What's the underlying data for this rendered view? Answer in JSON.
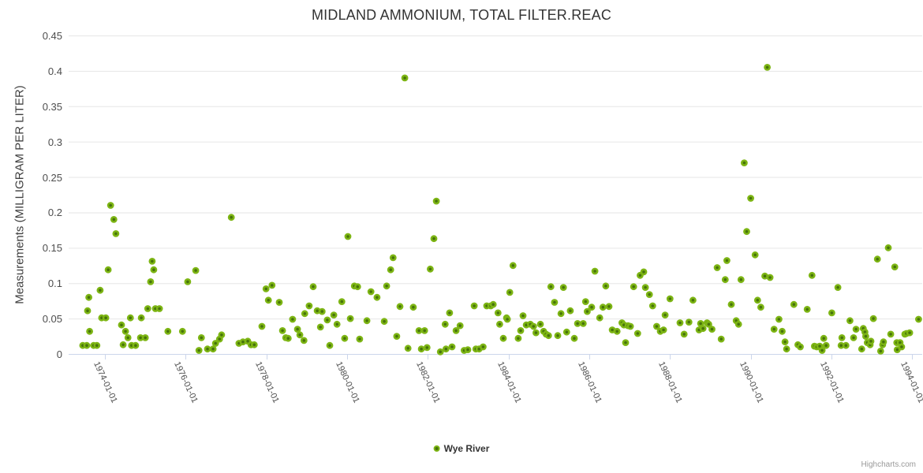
{
  "credit": "Highcharts.com",
  "colors": {
    "marker_ring": "#7db514",
    "marker_core": "#46730a",
    "grid": "#e6e6e6",
    "axis_line": "#ccd6eb",
    "title_text": "#333333",
    "label_text": "#4d4d4d",
    "credit_text": "#999999"
  },
  "chart_data": {
    "type": "scatter",
    "title": "MIDLAND AMMONIUM, TOTAL FILTER.REAC",
    "xlabel": "",
    "ylabel": "Measurements (MILLIGRAM PER LITER)",
    "series_name": "Wye River",
    "legend_position": "bottom-center",
    "grid": true,
    "xlim": [
      1973.1,
      1994.25
    ],
    "ylim": [
      0,
      0.45
    ],
    "y_ticks": [
      {
        "value": 0,
        "label": "0"
      },
      {
        "value": 0.05,
        "label": "0.05"
      },
      {
        "value": 0.1,
        "label": "0.1"
      },
      {
        "value": 0.15,
        "label": "0.15"
      },
      {
        "value": 0.2,
        "label": "0.2"
      },
      {
        "value": 0.25,
        "label": "0.25"
      },
      {
        "value": 0.3,
        "label": "0.3"
      },
      {
        "value": 0.35,
        "label": "0.35"
      },
      {
        "value": 0.4,
        "label": "0.4"
      },
      {
        "value": 0.45,
        "label": "0.45"
      }
    ],
    "x_ticks": [
      {
        "year": 1974,
        "label": "1974-01-01"
      },
      {
        "year": 1976,
        "label": "1976-01-01"
      },
      {
        "year": 1978,
        "label": "1978-01-01"
      },
      {
        "year": 1980,
        "label": "1980-01-01"
      },
      {
        "year": 1982,
        "label": "1982-01-01"
      },
      {
        "year": 1984,
        "label": "1984-01-01"
      },
      {
        "year": 1986,
        "label": "1986-01-01"
      },
      {
        "year": 1988,
        "label": "1988-01-01"
      },
      {
        "year": 1990,
        "label": "1990-01-01"
      },
      {
        "year": 1992,
        "label": "1992-01-01"
      },
      {
        "year": 1994,
        "label": "1994-01-01"
      }
    ],
    "series": [
      {
        "name": "Wye River",
        "points": [
          [
            1973.45,
            0.012
          ],
          [
            1973.55,
            0.012
          ],
          [
            1973.57,
            0.061
          ],
          [
            1973.6,
            0.08
          ],
          [
            1973.62,
            0.032
          ],
          [
            1973.72,
            0.012
          ],
          [
            1973.8,
            0.012
          ],
          [
            1973.88,
            0.09
          ],
          [
            1973.92,
            0.051
          ],
          [
            1974.02,
            0.051
          ],
          [
            1974.08,
            0.119
          ],
          [
            1974.14,
            0.21
          ],
          [
            1974.22,
            0.19
          ],
          [
            1974.27,
            0.17
          ],
          [
            1974.41,
            0.041
          ],
          [
            1974.45,
            0.013
          ],
          [
            1974.51,
            0.032
          ],
          [
            1974.57,
            0.023
          ],
          [
            1974.63,
            0.051
          ],
          [
            1974.66,
            0.012
          ],
          [
            1974.76,
            0.012
          ],
          [
            1974.88,
            0.023
          ],
          [
            1974.9,
            0.051
          ],
          [
            1975.0,
            0.023
          ],
          [
            1975.06,
            0.064
          ],
          [
            1975.13,
            0.102
          ],
          [
            1975.17,
            0.131
          ],
          [
            1975.21,
            0.119
          ],
          [
            1975.25,
            0.064
          ],
          [
            1975.35,
            0.064
          ],
          [
            1975.56,
            0.032
          ],
          [
            1975.92,
            0.032
          ],
          [
            1976.05,
            0.102
          ],
          [
            1976.25,
            0.118
          ],
          [
            1976.33,
            0.005
          ],
          [
            1976.39,
            0.023
          ],
          [
            1976.54,
            0.007
          ],
          [
            1976.68,
            0.007
          ],
          [
            1976.74,
            0.015
          ],
          [
            1976.84,
            0.021
          ],
          [
            1976.89,
            0.027
          ],
          [
            1977.13,
            0.193
          ],
          [
            1977.32,
            0.015
          ],
          [
            1977.42,
            0.017
          ],
          [
            1977.54,
            0.018
          ],
          [
            1977.62,
            0.013
          ],
          [
            1977.7,
            0.013
          ],
          [
            1977.89,
            0.039
          ],
          [
            1977.99,
            0.092
          ],
          [
            1978.05,
            0.076
          ],
          [
            1978.14,
            0.097
          ],
          [
            1978.32,
            0.073
          ],
          [
            1978.4,
            0.033
          ],
          [
            1978.48,
            0.023
          ],
          [
            1978.54,
            0.022
          ],
          [
            1978.65,
            0.049
          ],
          [
            1978.77,
            0.035
          ],
          [
            1978.83,
            0.027
          ],
          [
            1978.93,
            0.019
          ],
          [
            1978.95,
            0.057
          ],
          [
            1979.06,
            0.068
          ],
          [
            1979.16,
            0.095
          ],
          [
            1979.26,
            0.061
          ],
          [
            1979.34,
            0.038
          ],
          [
            1979.38,
            0.06
          ],
          [
            1979.51,
            0.048
          ],
          [
            1979.57,
            0.012
          ],
          [
            1979.67,
            0.055
          ],
          [
            1979.75,
            0.042
          ],
          [
            1979.87,
            0.074
          ],
          [
            1979.94,
            0.022
          ],
          [
            1980.02,
            0.166
          ],
          [
            1980.08,
            0.05
          ],
          [
            1980.18,
            0.096
          ],
          [
            1980.26,
            0.095
          ],
          [
            1980.31,
            0.021
          ],
          [
            1980.49,
            0.047
          ],
          [
            1980.59,
            0.088
          ],
          [
            1980.74,
            0.08
          ],
          [
            1980.92,
            0.046
          ],
          [
            1980.98,
            0.096
          ],
          [
            1981.08,
            0.119
          ],
          [
            1981.14,
            0.136
          ],
          [
            1981.23,
            0.025
          ],
          [
            1981.31,
            0.067
          ],
          [
            1981.43,
            0.39
          ],
          [
            1981.51,
            0.008
          ],
          [
            1981.64,
            0.066
          ],
          [
            1981.78,
            0.033
          ],
          [
            1981.84,
            0.007
          ],
          [
            1981.92,
            0.033
          ],
          [
            1981.98,
            0.009
          ],
          [
            1982.06,
            0.12
          ],
          [
            1982.15,
            0.163
          ],
          [
            1982.21,
            0.216
          ],
          [
            1982.31,
            0.003
          ],
          [
            1982.43,
            0.042
          ],
          [
            1982.45,
            0.007
          ],
          [
            1982.54,
            0.058
          ],
          [
            1982.6,
            0.01
          ],
          [
            1982.7,
            0.033
          ],
          [
            1982.8,
            0.04
          ],
          [
            1982.9,
            0.005
          ],
          [
            1982.99,
            0.006
          ],
          [
            1983.15,
            0.068
          ],
          [
            1983.19,
            0.007
          ],
          [
            1983.27,
            0.007
          ],
          [
            1983.37,
            0.01
          ],
          [
            1983.46,
            0.068
          ],
          [
            1983.56,
            0.068
          ],
          [
            1983.62,
            0.07
          ],
          [
            1983.74,
            0.058
          ],
          [
            1983.78,
            0.042
          ],
          [
            1983.87,
            0.022
          ],
          [
            1983.95,
            0.051
          ],
          [
            1983.97,
            0.049
          ],
          [
            1984.03,
            0.087
          ],
          [
            1984.11,
            0.125
          ],
          [
            1984.24,
            0.022
          ],
          [
            1984.3,
            0.033
          ],
          [
            1984.36,
            0.054
          ],
          [
            1984.44,
            0.041
          ],
          [
            1984.54,
            0.042
          ],
          [
            1984.62,
            0.039
          ],
          [
            1984.68,
            0.03
          ],
          [
            1984.79,
            0.042
          ],
          [
            1984.87,
            0.032
          ],
          [
            1984.93,
            0.028
          ],
          [
            1984.99,
            0.026
          ],
          [
            1985.05,
            0.095
          ],
          [
            1985.14,
            0.073
          ],
          [
            1985.22,
            0.026
          ],
          [
            1985.3,
            0.057
          ],
          [
            1985.36,
            0.094
          ],
          [
            1985.44,
            0.031
          ],
          [
            1985.53,
            0.061
          ],
          [
            1985.63,
            0.022
          ],
          [
            1985.71,
            0.043
          ],
          [
            1985.85,
            0.043
          ],
          [
            1985.91,
            0.074
          ],
          [
            1985.95,
            0.06
          ],
          [
            1986.06,
            0.066
          ],
          [
            1986.14,
            0.117
          ],
          [
            1986.26,
            0.051
          ],
          [
            1986.34,
            0.066
          ],
          [
            1986.41,
            0.096
          ],
          [
            1986.49,
            0.067
          ],
          [
            1986.57,
            0.034
          ],
          [
            1986.69,
            0.032
          ],
          [
            1986.81,
            0.044
          ],
          [
            1986.86,
            0.041
          ],
          [
            1986.9,
            0.016
          ],
          [
            1986.96,
            0.04
          ],
          [
            1987.02,
            0.039
          ],
          [
            1987.1,
            0.095
          ],
          [
            1987.2,
            0.029
          ],
          [
            1987.26,
            0.111
          ],
          [
            1987.35,
            0.116
          ],
          [
            1987.39,
            0.094
          ],
          [
            1987.49,
            0.084
          ],
          [
            1987.57,
            0.068
          ],
          [
            1987.67,
            0.039
          ],
          [
            1987.76,
            0.032
          ],
          [
            1987.84,
            0.034
          ],
          [
            1987.88,
            0.055
          ],
          [
            1988.0,
            0.078
          ],
          [
            1988.25,
            0.044
          ],
          [
            1988.35,
            0.028
          ],
          [
            1988.47,
            0.045
          ],
          [
            1988.57,
            0.076
          ],
          [
            1988.72,
            0.034
          ],
          [
            1988.76,
            0.043
          ],
          [
            1988.82,
            0.036
          ],
          [
            1988.92,
            0.044
          ],
          [
            1988.96,
            0.042
          ],
          [
            1989.04,
            0.035
          ],
          [
            1989.17,
            0.122
          ],
          [
            1989.27,
            0.021
          ],
          [
            1989.37,
            0.105
          ],
          [
            1989.41,
            0.132
          ],
          [
            1989.52,
            0.07
          ],
          [
            1989.64,
            0.047
          ],
          [
            1989.7,
            0.042
          ],
          [
            1989.76,
            0.105
          ],
          [
            1989.84,
            0.27
          ],
          [
            1989.9,
            0.173
          ],
          [
            1990.0,
            0.22
          ],
          [
            1990.11,
            0.14
          ],
          [
            1990.17,
            0.076
          ],
          [
            1990.25,
            0.066
          ],
          [
            1990.35,
            0.11
          ],
          [
            1990.41,
            0.405
          ],
          [
            1990.48,
            0.108
          ],
          [
            1990.58,
            0.035
          ],
          [
            1990.7,
            0.049
          ],
          [
            1990.78,
            0.032
          ],
          [
            1990.85,
            0.017
          ],
          [
            1990.89,
            0.007
          ],
          [
            1991.07,
            0.07
          ],
          [
            1991.17,
            0.013
          ],
          [
            1991.23,
            0.01
          ],
          [
            1991.4,
            0.063
          ],
          [
            1991.52,
            0.111
          ],
          [
            1991.58,
            0.011
          ],
          [
            1991.64,
            0.01
          ],
          [
            1991.71,
            0.011
          ],
          [
            1991.77,
            0.005
          ],
          [
            1991.81,
            0.022
          ],
          [
            1991.87,
            0.012
          ],
          [
            1992.01,
            0.058
          ],
          [
            1992.16,
            0.094
          ],
          [
            1992.24,
            0.012
          ],
          [
            1992.26,
            0.023
          ],
          [
            1992.36,
            0.012
          ],
          [
            1992.46,
            0.047
          ],
          [
            1992.55,
            0.023
          ],
          [
            1992.61,
            0.035
          ],
          [
            1992.75,
            0.007
          ],
          [
            1992.79,
            0.036
          ],
          [
            1992.83,
            0.031
          ],
          [
            1992.85,
            0.025
          ],
          [
            1992.89,
            0.016
          ],
          [
            1992.96,
            0.013
          ],
          [
            1992.98,
            0.018
          ],
          [
            1993.04,
            0.05
          ],
          [
            1993.14,
            0.134
          ],
          [
            1993.22,
            0.004
          ],
          [
            1993.27,
            0.013
          ],
          [
            1993.29,
            0.017
          ],
          [
            1993.41,
            0.15
          ],
          [
            1993.47,
            0.028
          ],
          [
            1993.57,
            0.123
          ],
          [
            1993.62,
            0.016
          ],
          [
            1993.63,
            0.006
          ],
          [
            1993.7,
            0.016
          ],
          [
            1993.74,
            0.01
          ],
          [
            1993.82,
            0.028
          ],
          [
            1993.86,
            0.029
          ],
          [
            1993.94,
            0.03
          ],
          [
            1994.16,
            0.049
          ]
        ]
      }
    ]
  }
}
